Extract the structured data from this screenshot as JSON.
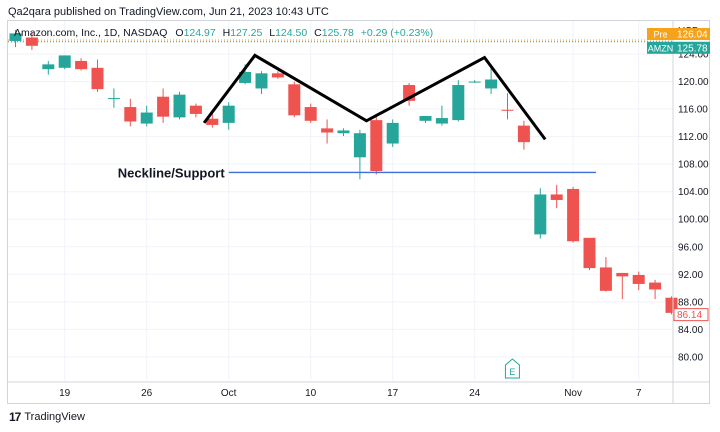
{
  "header": {
    "publisher_line": "Qa2qara published on TradingView.com, Jun 21, 2023 10:43 UTC",
    "symbol_line": "Amazon.com, Inc., 1D, NASDAQ",
    "ohlc": {
      "o_label": "O",
      "o": "124.97",
      "h_label": "H",
      "h": "127.25",
      "l_label": "L",
      "l": "124.50",
      "c_label": "C",
      "c": "125.78",
      "change": "+0.29 (+0.23%)"
    }
  },
  "footer": {
    "logo_text": "TradingView",
    "logo_mark": "17"
  },
  "colors": {
    "up": "#26a69a",
    "down": "#ef5350",
    "pattern": "#000000",
    "neckline": "#3f6ed8",
    "pre": "#f7a21b",
    "amzn": "#26a69a",
    "last": "#ef5350",
    "grid": "#f0f3fa"
  },
  "chart_data": {
    "type": "candlestick",
    "currency_label": "USD",
    "y_ticks": [
      80,
      84,
      88,
      92,
      96,
      100,
      104,
      108,
      112,
      116,
      120,
      124
    ],
    "y_tick_labels": [
      "80.00",
      "84.00",
      "88.00",
      "92.00",
      "96.00",
      "100.00",
      "104.00",
      "108.00",
      "112.00",
      "116.00",
      "120.00",
      "124.00"
    ],
    "ylim": [
      76.5,
      128.8
    ],
    "x_ticks": [
      {
        "index": 3,
        "label": "19"
      },
      {
        "index": 8,
        "label": "26"
      },
      {
        "index": 13,
        "label": "Oct"
      },
      {
        "index": 18,
        "label": "10"
      },
      {
        "index": 23,
        "label": "17"
      },
      {
        "index": 28,
        "label": "24"
      },
      {
        "index": 34,
        "label": "Nov"
      },
      {
        "index": 38,
        "label": "7"
      }
    ],
    "candles": [
      {
        "o": 125.9,
        "h": 127.5,
        "l": 125.0,
        "c": 127.0
      },
      {
        "o": 126.4,
        "h": 127.2,
        "l": 124.6,
        "c": 125.2
      },
      {
        "o": 121.8,
        "h": 123.0,
        "l": 121.0,
        "c": 122.5
      },
      {
        "o": 122.0,
        "h": 123.8,
        "l": 121.8,
        "c": 123.8
      },
      {
        "o": 123.0,
        "h": 123.4,
        "l": 121.6,
        "c": 121.8
      },
      {
        "o": 122.0,
        "h": 123.2,
        "l": 118.5,
        "c": 118.9
      },
      {
        "o": 117.5,
        "h": 119.0,
        "l": 116.2,
        "c": 117.6
      },
      {
        "o": 116.3,
        "h": 117.5,
        "l": 113.5,
        "c": 114.2
      },
      {
        "o": 113.9,
        "h": 116.5,
        "l": 113.5,
        "c": 115.5
      },
      {
        "o": 117.8,
        "h": 119.0,
        "l": 114.0,
        "c": 114.9
      },
      {
        "o": 114.8,
        "h": 118.5,
        "l": 114.5,
        "c": 118.1
      },
      {
        "o": 116.5,
        "h": 116.8,
        "l": 114.8,
        "c": 115.3
      },
      {
        "o": 114.6,
        "h": 115.5,
        "l": 113.3,
        "c": 113.7
      },
      {
        "o": 114.0,
        "h": 117.0,
        "l": 113.0,
        "c": 116.5
      },
      {
        "o": 119.8,
        "h": 122.5,
        "l": 119.6,
        "c": 121.4
      },
      {
        "o": 119.0,
        "h": 121.5,
        "l": 118.2,
        "c": 121.2
      },
      {
        "o": 121.2,
        "h": 121.5,
        "l": 120.4,
        "c": 120.6
      },
      {
        "o": 119.6,
        "h": 120.0,
        "l": 114.8,
        "c": 115.1
      },
      {
        "o": 116.3,
        "h": 116.8,
        "l": 114.0,
        "c": 114.3
      },
      {
        "o": 113.2,
        "h": 114.5,
        "l": 111.0,
        "c": 112.6
      },
      {
        "o": 112.5,
        "h": 113.2,
        "l": 112.1,
        "c": 112.9
      },
      {
        "o": 109.0,
        "h": 113.0,
        "l": 105.8,
        "c": 112.5
      },
      {
        "o": 114.4,
        "h": 115.3,
        "l": 106.5,
        "c": 107.0
      },
      {
        "o": 111.0,
        "h": 114.5,
        "l": 110.5,
        "c": 114.0
      },
      {
        "o": 119.5,
        "h": 119.8,
        "l": 116.5,
        "c": 117.2
      },
      {
        "o": 114.3,
        "h": 115.0,
        "l": 114.0,
        "c": 115.0
      },
      {
        "o": 113.9,
        "h": 116.5,
        "l": 113.6,
        "c": 114.7
      },
      {
        "o": 114.4,
        "h": 120.2,
        "l": 114.2,
        "c": 119.5
      },
      {
        "o": 120.0,
        "h": 120.2,
        "l": 119.8,
        "c": 120.0
      },
      {
        "o": 119.0,
        "h": 122.0,
        "l": 118.2,
        "c": 120.3
      },
      {
        "o": 115.9,
        "h": 118.3,
        "l": 114.5,
        "c": 115.8
      },
      {
        "o": 113.6,
        "h": 114.3,
        "l": 110.1,
        "c": 111.2
      },
      {
        "o": 97.8,
        "h": 104.5,
        "l": 97.2,
        "c": 103.6
      },
      {
        "o": 103.6,
        "h": 105.0,
        "l": 101.6,
        "c": 102.8
      },
      {
        "o": 104.4,
        "h": 104.7,
        "l": 96.6,
        "c": 96.8
      },
      {
        "o": 97.3,
        "h": 97.3,
        "l": 92.6,
        "c": 92.9
      },
      {
        "o": 93.0,
        "h": 94.5,
        "l": 89.5,
        "c": 89.6
      },
      {
        "o": 92.2,
        "h": 92.2,
        "l": 88.4,
        "c": 91.7
      },
      {
        "o": 91.9,
        "h": 92.4,
        "l": 89.7,
        "c": 90.6
      },
      {
        "o": 90.8,
        "h": 91.2,
        "l": 88.4,
        "c": 89.8
      },
      {
        "o": 88.6,
        "h": 88.8,
        "l": 86.2,
        "c": 86.4
      }
    ],
    "pattern_line": [
      {
        "index": 11.5,
        "price": 114.0
      },
      {
        "index": 14.6,
        "price": 123.8
      },
      {
        "index": 21.4,
        "price": 114.3
      },
      {
        "index": 28.6,
        "price": 123.5
      },
      {
        "index": 32.3,
        "price": 111.6
      }
    ],
    "neckline": {
      "label": "Neckline/Support",
      "price": 106.8,
      "from_index": 13,
      "to_index": 35.4
    },
    "earnings_marker": {
      "index": 30.3,
      "label": "E"
    },
    "price_labels": [
      {
        "label": "Pre",
        "value": "126.04",
        "price": 126.04,
        "color": "#f7a21b"
      },
      {
        "label": "AMZN",
        "value": "125.78",
        "price": 125.78,
        "color": "#26a69a"
      },
      {
        "label": "",
        "value": "86.14",
        "price": 86.14,
        "color": "#ef5350"
      }
    ]
  }
}
